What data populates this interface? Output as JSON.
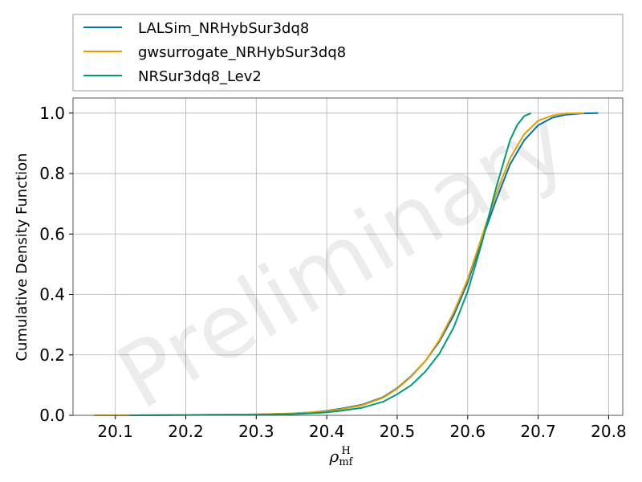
{
  "chart_data": {
    "type": "line",
    "title": "",
    "xlabel": {
      "base": "ρ",
      "sub": "mf",
      "sup": "H"
    },
    "ylabel": "Cumulative Density Function",
    "xlim": [
      20.04,
      20.82
    ],
    "ylim": [
      0.0,
      1.05
    ],
    "xticks": [
      20.1,
      20.2,
      20.3,
      20.4,
      20.5,
      20.6,
      20.7,
      20.8
    ],
    "xtick_labels": [
      "20.1",
      "20.2",
      "20.3",
      "20.4",
      "20.5",
      "20.6",
      "20.7",
      "20.8"
    ],
    "yticks": [
      0.0,
      0.2,
      0.4,
      0.6,
      0.8,
      1.0
    ],
    "ytick_labels": [
      "0.0",
      "0.2",
      "0.4",
      "0.6",
      "0.8",
      "1.0"
    ],
    "grid": true,
    "legend_position": "above-plot",
    "watermark": "Preliminary",
    "series": [
      {
        "name": "LALSim_NRHybSur3dq8",
        "color": "#0072B2",
        "x": [
          20.12,
          20.3,
          20.35,
          20.38,
          20.4,
          20.42,
          20.45,
          20.48,
          20.5,
          20.52,
          20.54,
          20.56,
          20.58,
          20.6,
          20.62,
          20.64,
          20.66,
          20.68,
          20.7,
          20.72,
          20.74,
          20.76,
          20.785
        ],
        "y": [
          0.0,
          0.003,
          0.006,
          0.01,
          0.015,
          0.022,
          0.035,
          0.06,
          0.09,
          0.13,
          0.18,
          0.245,
          0.33,
          0.44,
          0.58,
          0.71,
          0.83,
          0.91,
          0.96,
          0.985,
          0.995,
          0.999,
          1.0
        ]
      },
      {
        "name": "gwsurrogate_NRHybSur3dq8",
        "color": "#E69F00",
        "x": [
          20.07,
          20.12,
          20.3,
          20.35,
          20.38,
          20.4,
          20.42,
          20.45,
          20.48,
          20.5,
          20.52,
          20.54,
          20.56,
          20.58,
          20.6,
          20.62,
          20.64,
          20.66,
          20.68,
          20.7,
          20.72,
          20.74,
          20.765
        ],
        "y": [
          0.0,
          0.0,
          0.003,
          0.006,
          0.01,
          0.014,
          0.02,
          0.033,
          0.058,
          0.088,
          0.128,
          0.18,
          0.25,
          0.34,
          0.45,
          0.59,
          0.73,
          0.85,
          0.93,
          0.975,
          0.992,
          0.999,
          1.0
        ]
      },
      {
        "name": "NRSur3dq8_Lev2",
        "color": "#009E73",
        "x": [
          20.12,
          20.3,
          20.35,
          20.38,
          20.4,
          20.42,
          20.45,
          20.48,
          20.5,
          20.52,
          20.54,
          20.56,
          20.58,
          20.6,
          20.62,
          20.64,
          20.66,
          20.67,
          20.68,
          20.69
        ],
        "y": [
          0.0,
          0.002,
          0.004,
          0.007,
          0.01,
          0.015,
          0.025,
          0.045,
          0.07,
          0.1,
          0.145,
          0.205,
          0.29,
          0.41,
          0.57,
          0.75,
          0.91,
          0.96,
          0.99,
          1.0
        ]
      }
    ]
  }
}
